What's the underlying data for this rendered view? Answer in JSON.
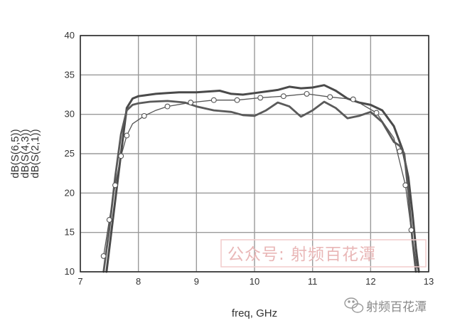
{
  "chart_data": {
    "type": "line",
    "xlabel": "freq, GHz",
    "ylabels": [
      "dB(S(6,5))",
      "dB(S(4,3))",
      "dB(S(2,1))"
    ],
    "xlim": [
      7,
      13
    ],
    "ylim": [
      10,
      40
    ],
    "x_ticks": [
      "7",
      "8",
      "9",
      "10",
      "11",
      "12",
      "13"
    ],
    "y_ticks": [
      "10",
      "15",
      "20",
      "25",
      "30",
      "35",
      "40"
    ],
    "grid": true,
    "series": [
      {
        "name": "dB(S(6,5))",
        "color": "#4a4a4a",
        "x": [
          7.45,
          7.55,
          7.65,
          7.75,
          7.8,
          7.9,
          8.0,
          8.1,
          8.3,
          8.5,
          8.7,
          9.0,
          9.2,
          9.4,
          9.6,
          9.8,
          10.0,
          10.2,
          10.4,
          10.6,
          10.8,
          11.0,
          11.2,
          11.4,
          11.6,
          11.8,
          12.0,
          12.2,
          12.4,
          12.55,
          12.65,
          12.72,
          12.78,
          12.83
        ],
        "y": [
          10,
          16,
          22,
          28,
          30.8,
          32.0,
          32.3,
          32.4,
          32.6,
          32.7,
          32.8,
          32.8,
          32.9,
          33.0,
          32.6,
          32.5,
          32.7,
          32.9,
          33.1,
          33.5,
          33.3,
          33.4,
          33.7,
          33.0,
          32.0,
          31.5,
          31.2,
          30.5,
          28.5,
          25.5,
          22.0,
          17.5,
          13.0,
          10
        ]
      },
      {
        "name": "dB(S(4,3))",
        "color": "#5a5a5a",
        "x": [
          7.4,
          7.5,
          7.6,
          7.7,
          7.8,
          7.9,
          8.0,
          8.2,
          8.5,
          8.8,
          9.0,
          9.3,
          9.6,
          9.8,
          10.0,
          10.2,
          10.4,
          10.6,
          10.8,
          11.0,
          11.2,
          11.4,
          11.6,
          11.8,
          12.0,
          12.2,
          12.4,
          12.5,
          12.58,
          12.65,
          12.72,
          12.78
        ],
        "y": [
          10,
          15.5,
          22,
          27.5,
          30.5,
          31.2,
          31.4,
          31.6,
          31.7,
          31.5,
          31.0,
          30.5,
          30.3,
          29.9,
          29.8,
          30.5,
          31.5,
          31.0,
          29.7,
          30.5,
          31.6,
          30.8,
          29.5,
          29.8,
          30.3,
          29.0,
          26.5,
          26.0,
          25.0,
          20.0,
          14.0,
          10
        ]
      },
      {
        "name": "dB(S(2,1))",
        "color": "#555555",
        "x": [
          7.4,
          7.5,
          7.6,
          7.7,
          7.8,
          7.9,
          8.1,
          8.3,
          8.5,
          8.9,
          9.3,
          9.7,
          10.1,
          10.5,
          10.9,
          11.3,
          11.7,
          12.1,
          12.4,
          12.6,
          12.7,
          12.8
        ],
        "y": [
          12,
          16.6,
          21,
          24.7,
          27.3,
          28.8,
          29.8,
          30.5,
          31.0,
          31.5,
          31.8,
          31.8,
          32.1,
          32.3,
          32.6,
          32.2,
          31.9,
          30.2,
          27.0,
          21.0,
          15.3,
          10.5
        ],
        "marker_x": [
          7.4,
          7.5,
          7.6,
          7.7,
          7.8,
          8.1,
          8.5,
          8.9,
          9.3,
          9.7,
          10.1,
          10.5,
          10.9,
          11.3,
          11.7,
          12.1,
          12.5,
          12.6,
          12.7
        ],
        "marker_y": [
          12,
          16.6,
          21,
          24.7,
          27.3,
          29.8,
          31.0,
          31.5,
          31.8,
          31.8,
          32.1,
          32.3,
          32.6,
          32.2,
          31.9,
          30.2,
          25.3,
          21.0,
          15.3
        ]
      }
    ]
  },
  "watermark": {
    "text": "公众号: 射频百花潭",
    "logo_text": "射频百花潭"
  }
}
